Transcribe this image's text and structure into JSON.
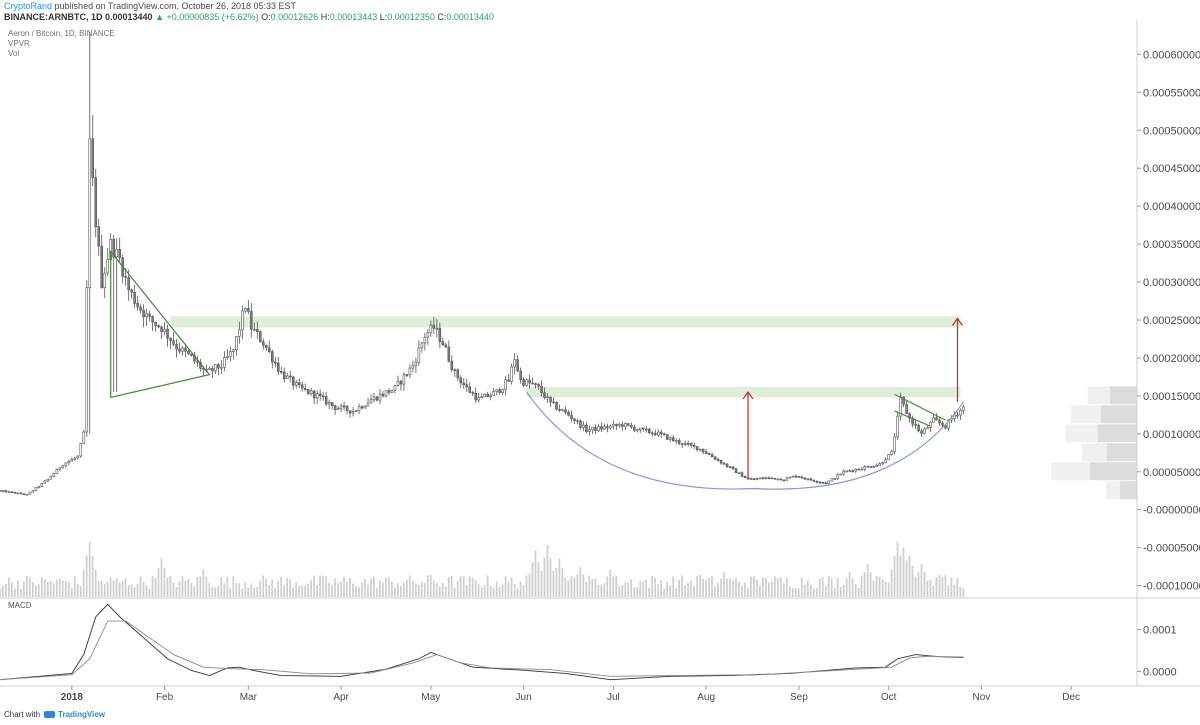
{
  "header": {
    "author": "CryptoRand",
    "published": "published on TradingView.com, October 26, 2018 05:33 EST",
    "symbol": "BINANCE:ARNBTC, 1D",
    "last": "0.00013440",
    "change": "▲ +0.00000835 (+6.62%)",
    "o_label": "O:",
    "o_value": "0.00012626",
    "h_label": "H:",
    "h_value": "0.00013443",
    "l_label": "L:",
    "l_value": "0.00012350",
    "c_label": "C:",
    "c_value": "0.00013440"
  },
  "legend": {
    "title": "Aeron / Bitcoin, 1D, BINANCE",
    "vpvr": "VPVR",
    "vol": "Vol"
  },
  "footer": {
    "chart_with": "Chart with",
    "brand": "TradingView"
  },
  "colors": {
    "candle_up": "#ffffff",
    "candle_down": "#7d7d7d",
    "wick": "#555555",
    "zone": "#dfeedb",
    "triangle": "#3d8c2f",
    "curve": "#7e9bd1",
    "arrow": "#c62828",
    "volume": "#cfcfcf"
  },
  "chart_data": [
    {
      "type": "candlestick",
      "title": "Aeron / Bitcoin, 1D, BINANCE",
      "y_ticks": [
        "0.00060000",
        "0.00055000",
        "0.00050000",
        "0.00045000",
        "0.00040000",
        "0.00035000",
        "0.00030000",
        "0.00025000",
        "0.00020000",
        "0.00015000",
        "0.00010000",
        "0.00005000",
        "-0.00000000",
        "-0.00005000",
        "-0.00010000"
      ],
      "y_tick_values": [
        0.0006,
        0.00055,
        0.0005,
        0.00045,
        0.0004,
        0.00035,
        0.0003,
        0.00025,
        0.0002,
        0.00015,
        0.0001,
        5e-05,
        0,
        -5e-05,
        -0.0001
      ],
      "ylim": [
        -0.000115,
        0.00064
      ],
      "x_ticks": [
        "2018",
        "Feb",
        "Mar",
        "Apr",
        "May",
        "Jun",
        "Jul",
        "Aug",
        "Sep",
        "Oct",
        "Nov",
        "Dec"
      ],
      "x_tick_days": [
        0,
        31,
        59,
        90,
        120,
        151,
        181,
        212,
        243,
        273,
        304,
        334
      ],
      "xlim_days": [
        -24,
        356
      ],
      "last_day": 298,
      "price_anchors": [
        [
          -24,
          2.5e-05
        ],
        [
          -15,
          2e-05
        ],
        [
          -8,
          4e-05
        ],
        [
          -3,
          6e-05
        ],
        [
          2,
          7e-05
        ],
        [
          4,
          0.0001
        ],
        [
          6,
          0.00048
        ],
        [
          8,
          0.00038
        ],
        [
          10,
          0.0003
        ],
        [
          13,
          0.00035
        ],
        [
          16,
          0.00033
        ],
        [
          19,
          0.00029
        ],
        [
          22,
          0.00027
        ],
        [
          26,
          0.00025
        ],
        [
          30,
          0.00024
        ],
        [
          35,
          0.000215
        ],
        [
          40,
          0.0002
        ],
        [
          45,
          0.00018
        ],
        [
          50,
          0.00019
        ],
        [
          54,
          0.00021
        ],
        [
          58,
          0.00027
        ],
        [
          60,
          0.00024
        ],
        [
          64,
          0.00022
        ],
        [
          70,
          0.00018
        ],
        [
          76,
          0.00016
        ],
        [
          82,
          0.00015
        ],
        [
          88,
          0.000135
        ],
        [
          94,
          0.00013
        ],
        [
          100,
          0.000145
        ],
        [
          108,
          0.00016
        ],
        [
          114,
          0.00019
        ],
        [
          118,
          0.00023
        ],
        [
          121,
          0.00024
        ],
        [
          124,
          0.00022
        ],
        [
          128,
          0.00018
        ],
        [
          132,
          0.00016
        ],
        [
          136,
          0.000145
        ],
        [
          142,
          0.000155
        ],
        [
          146,
          0.00017
        ],
        [
          148,
          0.0002
        ],
        [
          150,
          0.00017
        ],
        [
          154,
          0.000165
        ],
        [
          156,
          0.00016
        ],
        [
          160,
          0.00014
        ],
        [
          166,
          0.000125
        ],
        [
          172,
          0.000105
        ],
        [
          178,
          0.000108
        ],
        [
          184,
          0.000112
        ],
        [
          190,
          0.000105
        ],
        [
          196,
          0.0001
        ],
        [
          202,
          9e-05
        ],
        [
          210,
          8e-05
        ],
        [
          218,
          6e-05
        ],
        [
          226,
          4e-05
        ],
        [
          232,
          4.2e-05
        ],
        [
          238,
          4e-05
        ],
        [
          242,
          4.5e-05
        ],
        [
          246,
          4e-05
        ],
        [
          252,
          3.5e-05
        ],
        [
          258,
          5e-05
        ],
        [
          264,
          5.5e-05
        ],
        [
          270,
          6e-05
        ],
        [
          274,
          7.5e-05
        ],
        [
          276,
          0.00012
        ],
        [
          277,
          0.000145
        ],
        [
          280,
          0.00012
        ],
        [
          284,
          0.0001
        ],
        [
          288,
          0.000118
        ],
        [
          292,
          0.00011
        ],
        [
          295,
          0.000125
        ],
        [
          298,
          0.0001344
        ]
      ],
      "volume": {
        "spikes": [
          [
            6,
            1.0
          ],
          [
            30,
            0.7
          ],
          [
            44,
            0.5
          ],
          [
            120,
            0.4
          ],
          [
            155,
            0.85
          ],
          [
            159,
            0.95
          ],
          [
            163,
            0.7
          ],
          [
            170,
            0.55
          ],
          [
            180,
            0.5
          ],
          [
            210,
            0.4
          ],
          [
            218,
            0.45
          ],
          [
            232,
            0.35
          ],
          [
            246,
            0.3
          ],
          [
            260,
            0.45
          ],
          [
            266,
            0.6
          ],
          [
            276,
            1.0
          ],
          [
            278,
            0.9
          ],
          [
            280,
            0.75
          ],
          [
            284,
            0.6
          ],
          [
            290,
            0.4
          ]
        ]
      },
      "vpvr_rows": [
        {
          "price": 0.00015,
          "value": 0.45
        },
        {
          "price": 0.000125,
          "value": 0.6
        },
        {
          "price": 0.0001,
          "value": 0.65
        },
        {
          "price": 7.5e-05,
          "value": 0.5
        },
        {
          "price": 5e-05,
          "value": 0.78
        },
        {
          "price": 2.5e-05,
          "value": 0.28
        }
      ],
      "resistance_zones": [
        {
          "low": 0.00024,
          "high": 0.000255,
          "from_day": 33,
          "to_day": 297
        },
        {
          "low": 0.000148,
          "high": 0.000162,
          "from_day": 152,
          "to_day": 297
        }
      ],
      "annotations": {
        "triangle": [
          [
            13,
            0.00034
          ],
          [
            46,
            0.000178
          ],
          [
            13,
            0.000148
          ]
        ],
        "rounding_bottom": {
          "from": [
            152,
            0.000155
          ],
          "bottom": [
            228,
            2.8e-05
          ],
          "to": [
            298,
            0.000142
          ]
        },
        "flag": [
          [
            275,
            0.000152
          ],
          [
            292,
            0.000118
          ],
          [
            287,
            0.00011
          ],
          [
            275,
            0.00013
          ]
        ],
        "arrows": [
          {
            "day": 226,
            "from": 4.2e-05,
            "to": 0.000155
          },
          {
            "day": 296,
            "from": 0.000142,
            "to": 0.000252
          }
        ]
      }
    },
    {
      "type": "line",
      "title": "MACD",
      "y_ticks": [
        "0.0001",
        "0.0000"
      ],
      "y_tick_values": [
        0.0001,
        0.0
      ],
      "ylim": [
        -3.5e-05,
        0.000175
      ],
      "series": [
        {
          "color": "#333333",
          "points": [
            [
              -24,
              -2e-05
            ],
            [
              0,
              -5e-06
            ],
            [
              4,
              4e-05
            ],
            [
              8,
              0.00013
            ],
            [
              12,
              0.00016
            ],
            [
              16,
              0.00013
            ],
            [
              24,
              8e-05
            ],
            [
              32,
              3e-05
            ],
            [
              40,
              2e-06
            ],
            [
              46,
              -1e-05
            ],
            [
              52,
              8e-06
            ],
            [
              56,
              1e-05
            ],
            [
              60,
              3e-06
            ],
            [
              70,
              -1e-05
            ],
            [
              90,
              -1.2e-05
            ],
            [
              105,
              5e-06
            ],
            [
              116,
              3e-05
            ],
            [
              120,
              4.5e-05
            ],
            [
              126,
              3e-05
            ],
            [
              134,
              1e-05
            ],
            [
              150,
              3e-06
            ],
            [
              165,
              -5e-06
            ],
            [
              180,
              -2e-05
            ],
            [
              200,
              -1.2e-05
            ],
            [
              220,
              -1e-05
            ],
            [
              240,
              -5e-06
            ],
            [
              262,
              8e-06
            ],
            [
              272,
              1e-05
            ],
            [
              276,
              3e-05
            ],
            [
              282,
              4e-05
            ],
            [
              290,
              3.5e-05
            ],
            [
              298,
              3.3e-05
            ]
          ]
        },
        {
          "color": "#888888",
          "points": [
            [
              -24,
              -2e-05
            ],
            [
              0,
              -8e-06
            ],
            [
              6,
              3e-05
            ],
            [
              12,
              0.00012
            ],
            [
              18,
              0.00012
            ],
            [
              26,
              8e-05
            ],
            [
              34,
              4e-05
            ],
            [
              44,
              1e-05
            ],
            [
              54,
              6e-06
            ],
            [
              64,
              4e-06
            ],
            [
              80,
              -6e-06
            ],
            [
              100,
              -4e-06
            ],
            [
              114,
              2e-05
            ],
            [
              122,
              4e-05
            ],
            [
              130,
              2e-05
            ],
            [
              140,
              8e-06
            ],
            [
              160,
              4e-06
            ],
            [
              180,
              -1.2e-05
            ],
            [
              200,
              -1e-05
            ],
            [
              230,
              -8e-06
            ],
            [
              260,
              4e-06
            ],
            [
              274,
              1e-05
            ],
            [
              280,
              3.2e-05
            ],
            [
              286,
              3.6e-05
            ],
            [
              298,
              3.4e-05
            ]
          ]
        }
      ]
    }
  ]
}
